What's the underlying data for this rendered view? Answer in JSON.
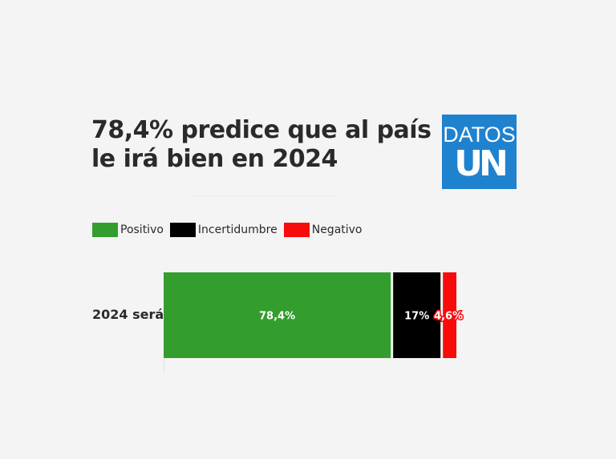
{
  "title_lines": [
    "78,4% predice que al país",
    "le irá bien en 2024"
  ],
  "logo": {
    "top": "DATOS",
    "bottom": "UN",
    "color": "#1f82cf"
  },
  "chart_data": {
    "type": "bar",
    "orientation": "horizontal",
    "stacked": true,
    "title": "78,4% predice que al país le irá bien en 2024",
    "categories": [
      "2024 será"
    ],
    "series": [
      {
        "name": "Positivo",
        "values": [
          78.4
        ],
        "color": "#339e2e",
        "label": "78,4%"
      },
      {
        "name": "Incertidumbre",
        "values": [
          17
        ],
        "color": "#000000",
        "label": "17%"
      },
      {
        "name": "Negativo",
        "values": [
          4.6
        ],
        "color": "#f80b0b",
        "label": "4,6%"
      }
    ],
    "xlim": [
      0,
      100
    ],
    "grid": false,
    "legend_position": "top-left"
  }
}
